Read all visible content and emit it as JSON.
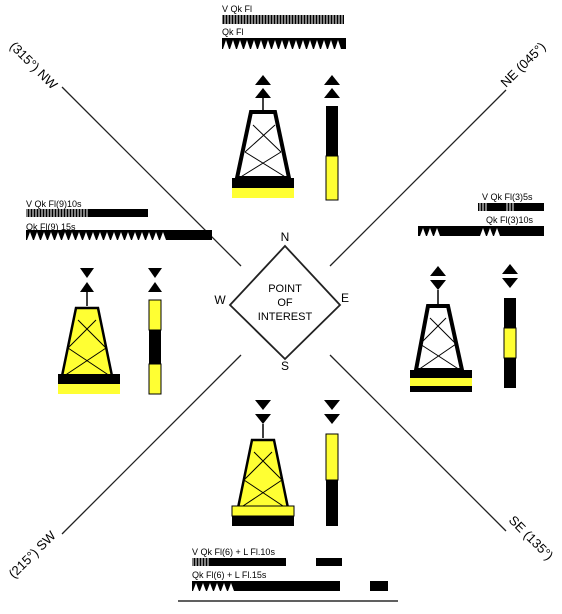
{
  "title": "",
  "center": {
    "lines": [
      "POINT",
      "OF",
      "INTEREST"
    ],
    "compass": {
      "n": "N",
      "e": "E",
      "s": "S",
      "w": "W"
    }
  },
  "quadrants": {
    "nw": {
      "label": "(315°) NW"
    },
    "ne": {
      "label": "NE (045°)"
    },
    "se": {
      "label": "SE (135°)"
    },
    "sw": {
      "label": "(215°) SW"
    }
  },
  "marks": {
    "north": {
      "light_fast": "V Qk Fl",
      "light_slow": "Qk Fl",
      "topmark": "two cones points up",
      "colors": [
        "#000000",
        "#ffff33"
      ]
    },
    "east": {
      "light_fast": "V Qk Fl(3)5s",
      "light_slow": "Qk Fl(3)10s",
      "topmark": "two cones base to base",
      "colors": [
        "#000000",
        "#ffff33",
        "#000000"
      ]
    },
    "south": {
      "light_fast": "V Qk Fl(6) + L Fl.10s",
      "light_slow": "Qk Fl(6) + L Fl.15s",
      "topmark": "two cones points down",
      "colors": [
        "#ffff33",
        "#000000"
      ]
    },
    "west": {
      "light_fast": "V Qk Fl(9)10s",
      "light_slow": "Qk Fl(9) 15s",
      "topmark": "two cones point to point",
      "colors": [
        "#ffff33",
        "#000000",
        "#ffff33"
      ]
    }
  },
  "colors": {
    "yellow": "#ffff33",
    "black": "#000000",
    "line": "#222222"
  }
}
